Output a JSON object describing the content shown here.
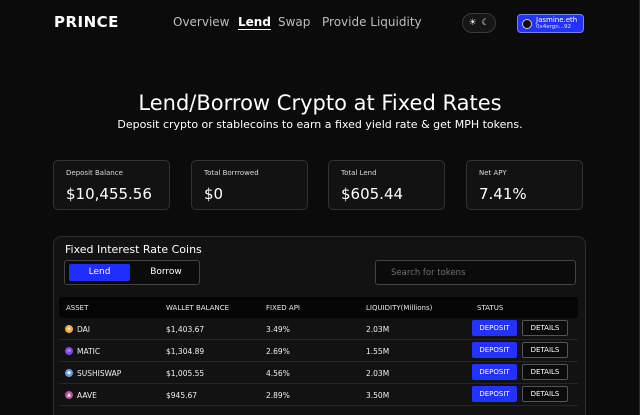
{
  "nav": {
    "logo": "PRINCE",
    "links": [
      "Overview",
      "Lend",
      "Swap",
      "Provide Liquidity"
    ],
    "active": "Lend",
    "theme_icons": [
      "sun-icon",
      "moon-icon"
    ],
    "wallet": {
      "name": "Jasmine.eth",
      "address": "0x4ergn...92"
    }
  },
  "hero": {
    "title": "Lend/Borrow Crypto at Fixed Rates",
    "subtitle": "Deposit crypto or stablecoins to earn a fixed yield rate & get MPH tokens."
  },
  "stats": [
    {
      "label": "Deposit Balance",
      "value": "$10,455.56"
    },
    {
      "label": "Total Borrrowed",
      "value": "$0"
    },
    {
      "label": "Total Lend",
      "value": "$605.44"
    },
    {
      "label": "Net APY",
      "value": "7.41%"
    }
  ],
  "panel": {
    "title": "Fixed Interest Rate Coins",
    "tabs": [
      "Lend",
      "Borrow"
    ],
    "active_tab": "Lend",
    "search_placeholder": "Search for tokens",
    "columns": [
      "ASSET",
      "WALLET  BALANCE",
      "FIXED API",
      "LIQUIDITY(Millions)",
      "STATUS"
    ],
    "rows": [
      {
        "asset": "DAI",
        "icon": "dai-icon",
        "icon_color": "#f5ac37",
        "balance": "$1,403.67",
        "fixed_api": "3.49%",
        "liquidity": "2.03M",
        "deposit": "DEPOSIT",
        "details": "DETAILS"
      },
      {
        "asset": "MATIC",
        "icon": "matic-icon",
        "icon_color": "#8247e5",
        "balance": "$1,304.89",
        "fixed_api": "2.69%",
        "liquidity": "1.55M",
        "deposit": "DEPOSIT",
        "details": "DETAILS"
      },
      {
        "asset": "SUSHISWAP",
        "icon": "sushi-icon",
        "icon_color": "#5aa0e6",
        "balance": "$1,005.55",
        "fixed_api": "4.56%",
        "liquidity": "2.03M",
        "deposit": "DEPOSIT",
        "details": "DETAILS"
      },
      {
        "asset": "AAVE",
        "icon": "aave-icon",
        "icon_color": "#b6509e",
        "balance": "$945.67",
        "fixed_api": "2.89%",
        "liquidity": "3.50M",
        "deposit": "DEPOSIT",
        "details": "DETAILS"
      }
    ]
  },
  "colors": {
    "accent": "#2233ff",
    "background": "#0b0b0b",
    "card": "#121212"
  }
}
